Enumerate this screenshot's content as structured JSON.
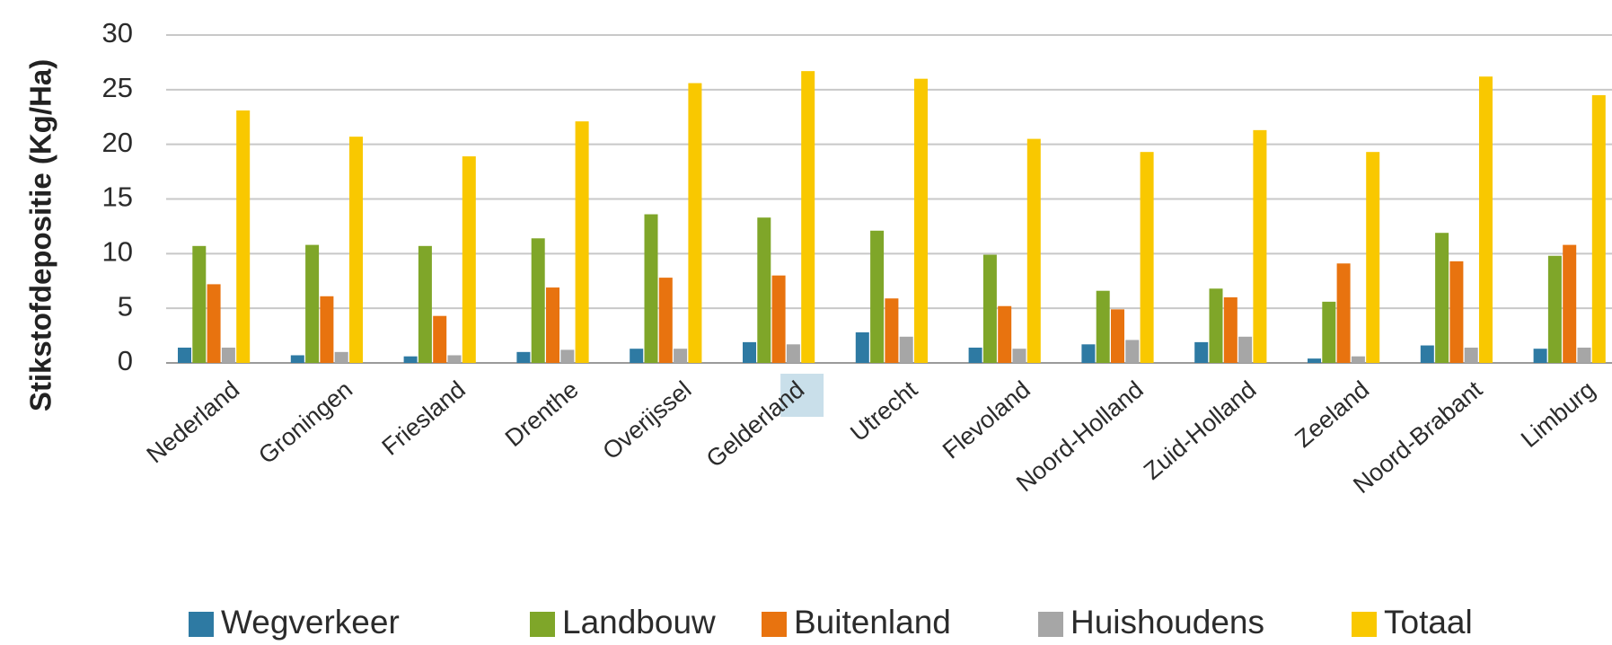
{
  "chart_data": {
    "type": "bar",
    "title": "",
    "xlabel": "",
    "ylabel": "Stikstofdepositie (Kg/Ha)",
    "ylim": [
      0,
      30
    ],
    "yticks": [
      0,
      5,
      10,
      15,
      20,
      25,
      30
    ],
    "grid": true,
    "legend_position": "bottom",
    "highlighted_category": "Gelderland",
    "highlight_color": "#c9dfea",
    "categories": [
      "Nederland",
      "Groningen",
      "Friesland",
      "Drenthe",
      "Overijssel",
      "Gelderland",
      "Utrecht",
      "Flevoland",
      "Noord-Holland",
      "Zuid-Holland",
      "Zeeland",
      "Noord-Brabant",
      "Limburg"
    ],
    "series": [
      {
        "name": "Wegverkeer",
        "color": "#2e7aa3",
        "values": [
          1.4,
          0.7,
          0.6,
          1.0,
          1.3,
          1.9,
          2.8,
          1.4,
          1.7,
          1.9,
          0.4,
          1.6,
          1.3
        ]
      },
      {
        "name": "Landbouw",
        "color": "#7fa629",
        "values": [
          10.7,
          10.8,
          10.7,
          11.4,
          13.6,
          13.3,
          12.1,
          9.9,
          6.6,
          6.8,
          5.6,
          11.9,
          9.8
        ]
      },
      {
        "name": "Buitenland",
        "color": "#e8730f",
        "values": [
          7.2,
          6.1,
          4.3,
          6.9,
          7.8,
          8.0,
          5.9,
          5.2,
          4.9,
          6.0,
          9.1,
          9.3,
          10.8
        ]
      },
      {
        "name": "Huishoudens",
        "color": "#a6a6a6",
        "values": [
          1.4,
          1.0,
          0.7,
          1.2,
          1.3,
          1.7,
          2.4,
          1.3,
          2.1,
          2.4,
          0.6,
          1.4,
          1.4
        ]
      },
      {
        "name": "Totaal",
        "color": "#f9c800",
        "values": [
          23.1,
          20.7,
          18.9,
          22.1,
          25.6,
          26.7,
          26.0,
          20.5,
          19.3,
          21.3,
          19.3,
          26.2,
          24.5
        ]
      }
    ]
  }
}
